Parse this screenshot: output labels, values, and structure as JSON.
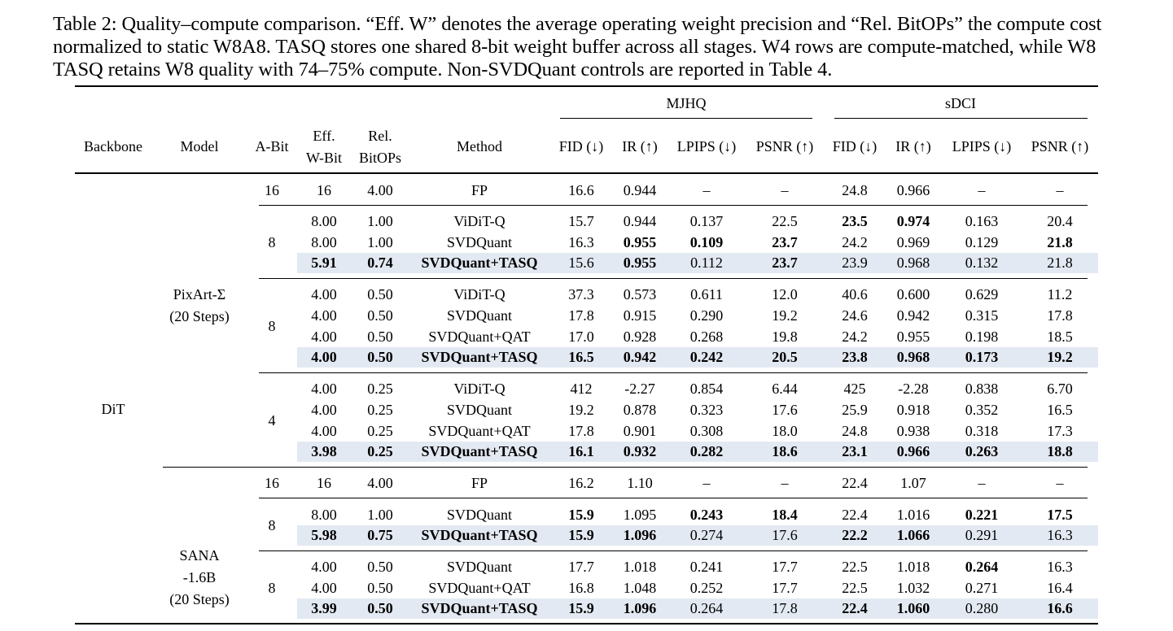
{
  "caption": "Table 2: Quality–compute comparison. “Eff. W” denotes the average operating weight precision and “Rel. BitOPs” the compute cost normalized to static W8A8. TASQ stores one shared 8-bit weight buffer across all stages. W4 rows are compute-matched, while W8 TASQ retains W8 quality with 74–75% compute. Non-SVDQuant controls are reported in Table 4.",
  "groups": {
    "mjhq": "MJHQ",
    "sdci": "sDCI"
  },
  "headers": [
    "Backbone",
    "Model",
    "A-Bit",
    "Eff.",
    "W-Bit",
    "Rel.",
    "BitOPs",
    "Method",
    "FID (↓)",
    "IR (↑)",
    "LPIPS (↓)",
    "PSNR (↑)",
    "FID (↓)",
    "IR (↑)",
    "LPIPS (↓)",
    "PSNR (↑)"
  ],
  "backbone": "DiT",
  "models": [
    {
      "line1": "PixArt-Σ",
      "line2": "(20 Steps)"
    },
    {
      "line1": "SANA",
      "line2": "-1.6B",
      "line3": "(20 Steps)"
    }
  ],
  "abits": [
    "16",
    "8",
    "8",
    "4",
    "16",
    "8",
    "8"
  ],
  "rows": [
    [
      "16",
      "4.00",
      "FP",
      "16.6",
      "0.944",
      "–",
      "–",
      "24.8",
      "0.966",
      "–",
      "–"
    ],
    [
      "8.00",
      "1.00",
      "ViDiT-Q",
      "15.7",
      "0.944",
      "0.137",
      "22.5",
      "23.5",
      "0.974",
      "0.163",
      "20.4"
    ],
    [
      "8.00",
      "1.00",
      "SVDQuant",
      "16.3",
      "0.955",
      "0.109",
      "23.7",
      "24.2",
      "0.969",
      "0.129",
      "21.8"
    ],
    [
      "5.91",
      "0.74",
      "SVDQuant+TASQ",
      "15.6",
      "0.955",
      "0.112",
      "23.7",
      "23.9",
      "0.968",
      "0.132",
      "21.8"
    ],
    [
      "4.00",
      "0.50",
      "ViDiT-Q",
      "37.3",
      "0.573",
      "0.611",
      "12.0",
      "40.6",
      "0.600",
      "0.629",
      "11.2"
    ],
    [
      "4.00",
      "0.50",
      "SVDQuant",
      "17.8",
      "0.915",
      "0.290",
      "19.2",
      "24.6",
      "0.942",
      "0.315",
      "17.8"
    ],
    [
      "4.00",
      "0.50",
      "SVDQuant+QAT",
      "17.0",
      "0.928",
      "0.268",
      "19.8",
      "24.2",
      "0.955",
      "0.198",
      "18.5"
    ],
    [
      "4.00",
      "0.50",
      "SVDQuant+TASQ",
      "16.5",
      "0.942",
      "0.242",
      "20.5",
      "23.8",
      "0.968",
      "0.173",
      "19.2"
    ],
    [
      "4.00",
      "0.25",
      "ViDiT-Q",
      "412",
      "-2.27",
      "0.854",
      "6.44",
      "425",
      "-2.28",
      "0.838",
      "6.70"
    ],
    [
      "4.00",
      "0.25",
      "SVDQuant",
      "19.2",
      "0.878",
      "0.323",
      "17.6",
      "25.9",
      "0.918",
      "0.352",
      "16.5"
    ],
    [
      "4.00",
      "0.25",
      "SVDQuant+QAT",
      "17.8",
      "0.901",
      "0.308",
      "18.0",
      "24.8",
      "0.938",
      "0.318",
      "17.3"
    ],
    [
      "3.98",
      "0.25",
      "SVDQuant+TASQ",
      "16.1",
      "0.932",
      "0.282",
      "18.6",
      "23.1",
      "0.966",
      "0.263",
      "18.8"
    ],
    [
      "16",
      "4.00",
      "FP",
      "16.2",
      "1.10",
      "–",
      "–",
      "22.4",
      "1.07",
      "–",
      "–"
    ],
    [
      "8.00",
      "1.00",
      "SVDQuant",
      "15.9",
      "1.095",
      "0.243",
      "18.4",
      "22.4",
      "1.016",
      "0.221",
      "17.5"
    ],
    [
      "5.98",
      "0.75",
      "SVDQuant+TASQ",
      "15.9",
      "1.096",
      "0.274",
      "17.6",
      "22.2",
      "1.066",
      "0.291",
      "16.3"
    ],
    [
      "4.00",
      "0.50",
      "SVDQuant",
      "17.7",
      "1.018",
      "0.241",
      "17.7",
      "22.5",
      "1.018",
      "0.264",
      "16.3"
    ],
    [
      "4.00",
      "0.50",
      "SVDQuant+QAT",
      "16.8",
      "1.048",
      "0.252",
      "17.7",
      "22.5",
      "1.032",
      "0.271",
      "16.4"
    ],
    [
      "3.99",
      "0.50",
      "SVDQuant+TASQ",
      "15.9",
      "1.096",
      "0.264",
      "17.8",
      "22.4",
      "1.060",
      "0.280",
      "16.6"
    ]
  ],
  "bold": [
    [],
    [
      7,
      8
    ],
    [
      4,
      5,
      6,
      10,
      11
    ],
    [
      0,
      1,
      2,
      4,
      6
    ],
    [],
    [],
    [],
    [
      0,
      1,
      2,
      3,
      4,
      5,
      6,
      7,
      8,
      9,
      10
    ],
    [],
    [],
    [],
    [
      0,
      1,
      2,
      3,
      4,
      5,
      6,
      7,
      8,
      9,
      10
    ],
    [],
    [
      3,
      5,
      6,
      9,
      10
    ],
    [
      0,
      1,
      2,
      3,
      4,
      7,
      8
    ],
    [
      9
    ],
    [],
    [
      0,
      1,
      2,
      3,
      4,
      7,
      8,
      10
    ]
  ],
  "highlighted_rows": [
    3,
    7,
    11,
    14,
    17
  ]
}
